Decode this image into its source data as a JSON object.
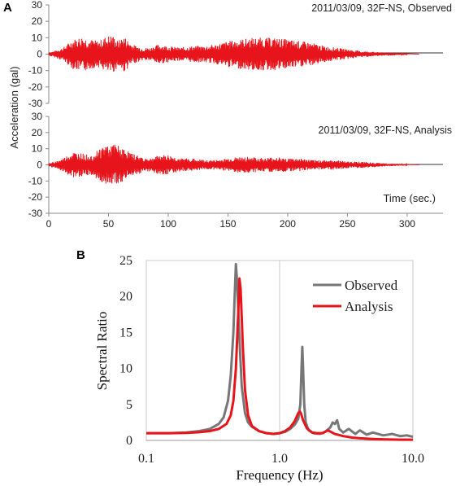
{
  "chart_data": [
    {
      "panel": "A",
      "type": "line",
      "ylabel": "Acceleration (gal)",
      "xlabel": "Time (sec.)",
      "xlim": [
        0,
        330
      ],
      "x_ticks": [
        0,
        50,
        100,
        150,
        200,
        250,
        300
      ],
      "series_color": "#e8141b",
      "subplots": [
        {
          "annotation": "2011/03/09, 32F-NS, Observed",
          "ylim": [
            -30,
            30
          ],
          "y_ticks": [
            30,
            20,
            10,
            0,
            -10,
            -20,
            -30
          ],
          "duration": 300,
          "envelope": {
            "t": [
              0,
              5,
              12,
              20,
              28,
              35,
              42,
              48,
              53,
              58,
              63,
              70,
              78,
              85,
              92,
              100,
              110,
              120,
              130,
              140,
              150,
              160,
              170,
              180,
              190,
              200,
              210,
              220,
              230,
              240,
              250,
              260,
              270,
              280,
              290,
              300
            ],
            "amp": [
              1,
              2,
              4,
              9,
              11,
              9,
              8,
              11,
              12,
              8,
              11,
              6,
              4,
              4,
              6,
              5,
              4,
              5,
              5,
              6,
              8,
              9,
              10,
              10,
              10,
              9,
              8,
              7,
              5,
              4,
              3,
              2,
              1.5,
              1,
              0.8,
              0.4
            ]
          }
        },
        {
          "annotation": "2011/03/09, 32F-NS, Analysis",
          "ylim": [
            -30,
            30
          ],
          "y_ticks": [
            30,
            20,
            10,
            0,
            -10,
            -20,
            -30
          ],
          "duration": 300,
          "envelope": {
            "t": [
              0,
              5,
              12,
              20,
              28,
              35,
              42,
              48,
              53,
              58,
              63,
              70,
              78,
              85,
              92,
              100,
              110,
              120,
              130,
              140,
              150,
              160,
              170,
              180,
              190,
              200,
              210,
              220,
              230,
              240,
              250,
              260,
              270,
              280,
              290,
              300
            ],
            "amp": [
              1,
              2,
              4,
              8,
              7,
              6,
              10,
              13,
              13,
              12,
              10,
              7,
              5,
              4,
              6,
              6,
              4,
              4,
              3,
              3,
              4,
              5,
              5,
              4,
              5,
              4,
              4,
              3,
              3,
              3,
              2,
              2,
              1.5,
              1,
              0.7,
              0.4
            ]
          }
        }
      ]
    },
    {
      "panel": "B",
      "type": "line",
      "xlabel": "Frequency (Hz)",
      "ylabel": "Spectral Ratio",
      "x_scale": "log",
      "xlim": [
        0.1,
        10.0
      ],
      "x_ticks": [
        "0.1",
        "1.0",
        "10.0"
      ],
      "ylim": [
        0,
        25
      ],
      "y_ticks": [
        0,
        5,
        10,
        15,
        20,
        25
      ],
      "grid": "vertical",
      "legend_position": "top-right",
      "series": [
        {
          "name": "Observed",
          "color": "#777777",
          "x": [
            0.1,
            0.15,
            0.2,
            0.25,
            0.3,
            0.35,
            0.38,
            0.41,
            0.43,
            0.45,
            0.46,
            0.47,
            0.48,
            0.5,
            0.52,
            0.55,
            0.58,
            0.62,
            0.7,
            0.8,
            0.9,
            1.0,
            1.1,
            1.2,
            1.3,
            1.38,
            1.43,
            1.46,
            1.48,
            1.5,
            1.53,
            1.57,
            1.65,
            1.8,
            2.0,
            2.2,
            2.4,
            2.5,
            2.6,
            2.7,
            2.8,
            3.0,
            3.3,
            3.7,
            4.0,
            4.5,
            5.0,
            6.0,
            7.0,
            8.0,
            9.0,
            10.0
          ],
          "y": [
            1.0,
            1.0,
            1.1,
            1.3,
            1.6,
            2.3,
            3.2,
            5.5,
            9.0,
            15.0,
            20.0,
            24.5,
            22.0,
            14.0,
            7.5,
            3.8,
            2.5,
            1.9,
            1.3,
            1.0,
            0.9,
            1.0,
            1.2,
            1.6,
            2.2,
            3.0,
            5.0,
            10.0,
            13.0,
            10.0,
            5.0,
            2.5,
            1.4,
            1.0,
            0.9,
            1.2,
            1.8,
            2.5,
            2.3,
            2.8,
            1.6,
            1.1,
            1.6,
            0.9,
            1.4,
            0.8,
            1.1,
            0.7,
            0.9,
            0.6,
            0.7,
            0.5
          ]
        },
        {
          "name": "Analysis",
          "color": "#e8141b",
          "x": [
            0.1,
            0.15,
            0.2,
            0.25,
            0.3,
            0.35,
            0.4,
            0.43,
            0.45,
            0.47,
            0.49,
            0.5,
            0.51,
            0.53,
            0.55,
            0.58,
            0.62,
            0.7,
            0.8,
            0.9,
            1.0,
            1.1,
            1.2,
            1.3,
            1.38,
            1.42,
            1.45,
            1.5,
            1.6,
            1.75,
            1.9,
            2.1,
            2.3,
            2.6,
            3.0,
            3.5,
            4.0,
            5.0,
            6.0,
            8.0,
            10.0
          ],
          "y": [
            1.0,
            1.0,
            1.05,
            1.15,
            1.3,
            1.6,
            2.3,
            3.5,
            5.5,
            10.0,
            18.0,
            22.5,
            21.0,
            13.0,
            7.0,
            3.5,
            2.0,
            1.3,
            1.0,
            0.9,
            1.0,
            1.3,
            1.8,
            2.7,
            3.8,
            4.0,
            3.7,
            2.8,
            1.7,
            1.1,
            1.0,
            1.0,
            1.4,
            0.9,
            0.6,
            0.4,
            0.3,
            0.2,
            0.15,
            0.1,
            0.1
          ]
        }
      ]
    }
  ]
}
